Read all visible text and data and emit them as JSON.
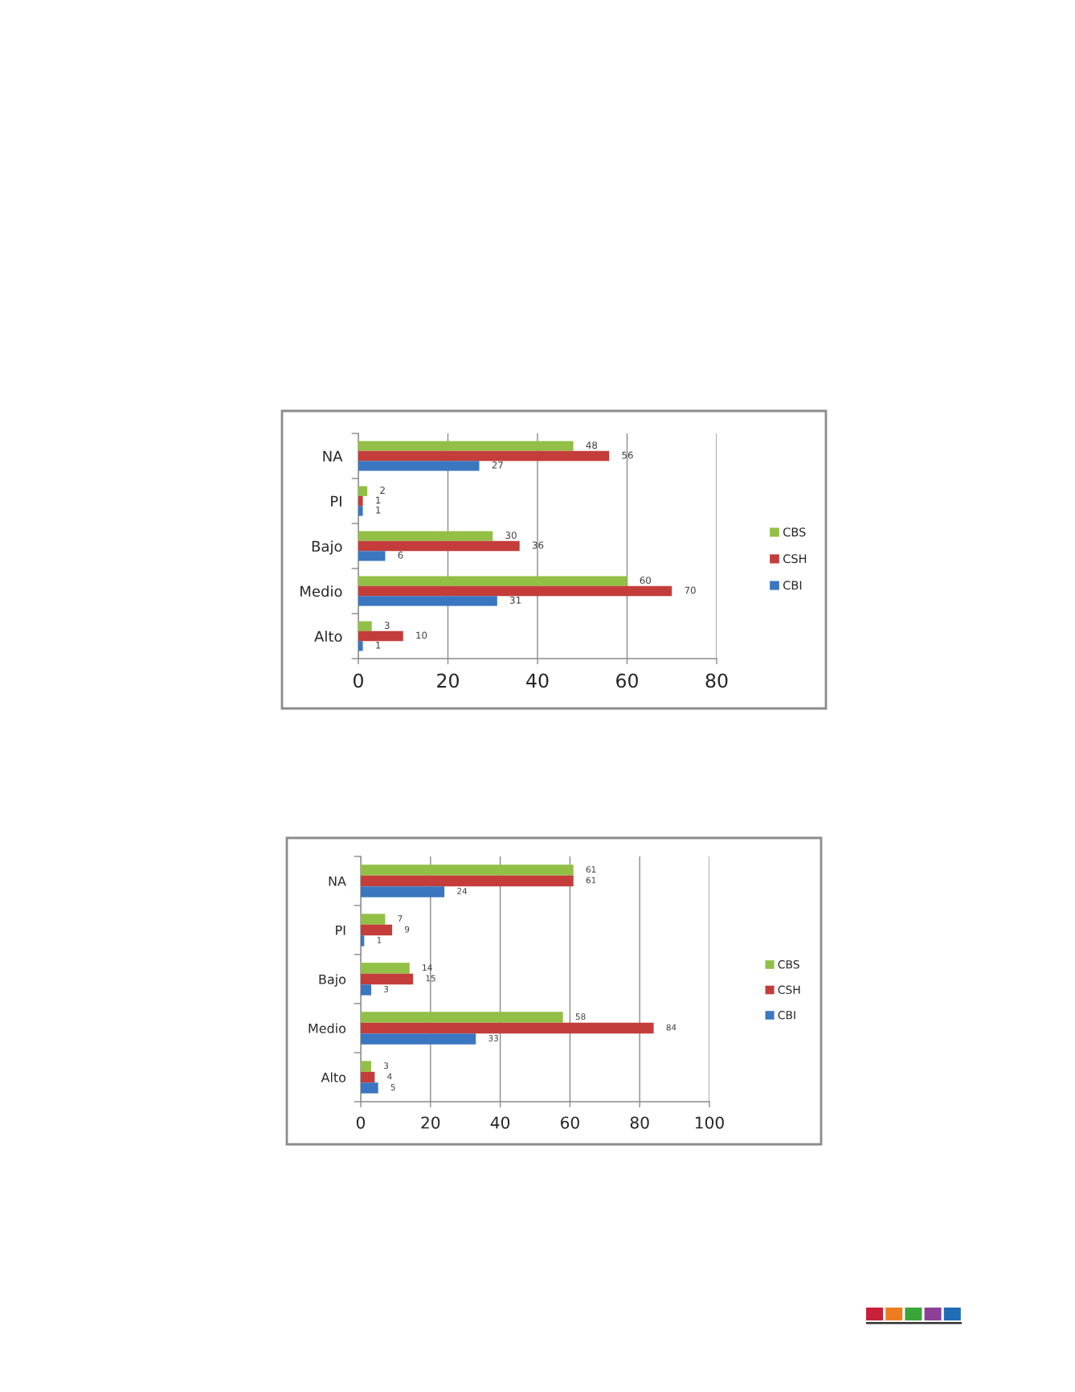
{
  "chart_data": [
    {
      "type": "bar",
      "orientation": "horizontal",
      "categories": [
        "NA",
        "PI",
        "Bajo",
        "Medio",
        "Alto"
      ],
      "series": [
        {
          "name": "CBS",
          "color": "#92bf45",
          "values": [
            48,
            2,
            30,
            60,
            3
          ]
        },
        {
          "name": "CSH",
          "color": "#c43d3b",
          "values": [
            56,
            1,
            36,
            70,
            10
          ]
        },
        {
          "name": "CBI",
          "color": "#3b76c0",
          "values": [
            27,
            1,
            6,
            31,
            1
          ]
        }
      ],
      "xlim": [
        0,
        80
      ],
      "xticks": [
        0,
        20,
        40,
        60,
        80
      ],
      "grid": "x",
      "legend": "right",
      "data_labels": true
    },
    {
      "type": "bar",
      "orientation": "horizontal",
      "categories": [
        "NA",
        "PI",
        "Bajo",
        "Medio",
        "Alto"
      ],
      "series": [
        {
          "name": "CBS",
          "color": "#92bf45",
          "values": [
            61,
            7,
            14,
            58,
            3
          ]
        },
        {
          "name": "CSH",
          "color": "#c43d3b",
          "values": [
            61,
            9,
            15,
            84,
            4
          ]
        },
        {
          "name": "CBI",
          "color": "#3b76c0",
          "values": [
            24,
            1,
            3,
            33,
            5
          ]
        }
      ],
      "xlim": [
        0,
        100
      ],
      "xticks": [
        0,
        20,
        40,
        60,
        80,
        100
      ],
      "grid": "x",
      "legend": "right",
      "data_labels": true
    }
  ]
}
